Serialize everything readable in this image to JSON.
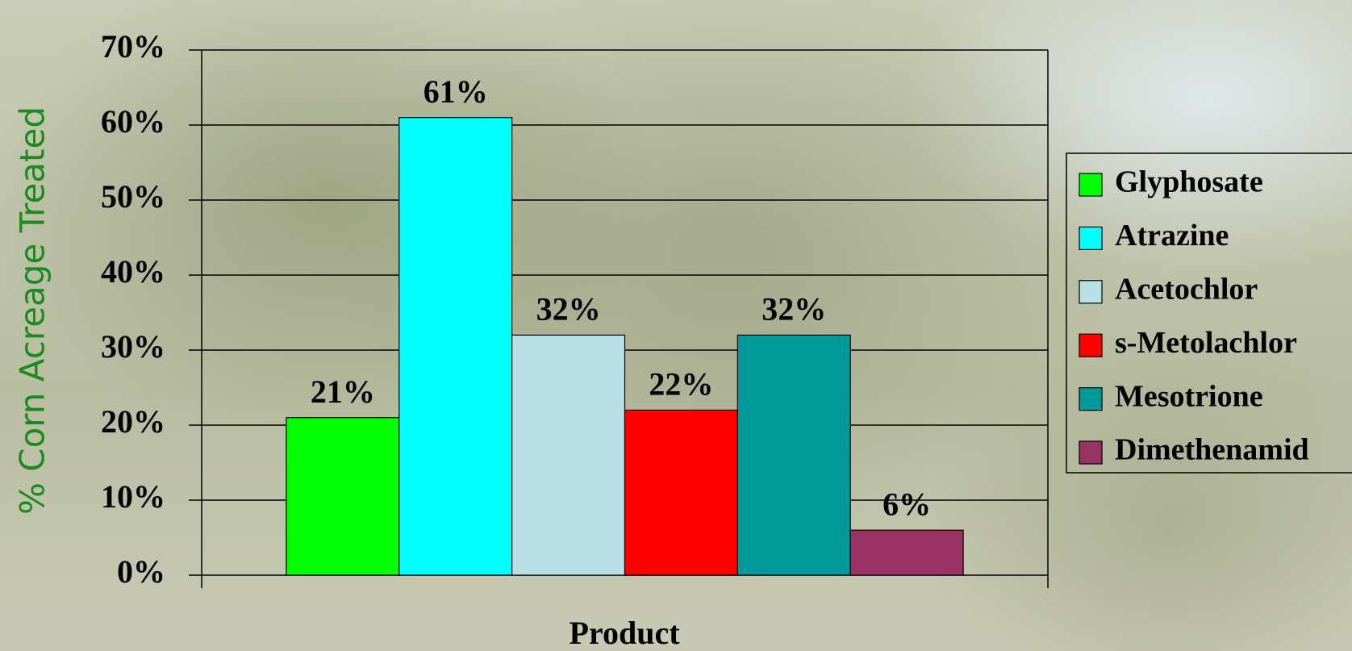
{
  "chart_data": {
    "type": "bar",
    "y_label": "% Corn Acreage Treated",
    "x_label": "Product",
    "categories": [
      null
    ],
    "series": [
      {
        "name": "Glyphosate",
        "color": "#00ff00",
        "values": [
          21
        ],
        "value_labels": [
          "21%"
        ]
      },
      {
        "name": "Atrazine",
        "color": "#00ffff",
        "values": [
          61
        ],
        "value_labels": [
          "61%"
        ]
      },
      {
        "name": "Acetochlor",
        "color": "#b9e0e4",
        "values": [
          32
        ],
        "value_labels": [
          "32%"
        ]
      },
      {
        "name": "s-Metolachlor",
        "color": "#ff0000",
        "values": [
          22
        ],
        "value_labels": [
          "22%"
        ]
      },
      {
        "name": "Mesotrione",
        "color": "#009999",
        "values": [
          32
        ],
        "value_labels": [
          "32%"
        ]
      },
      {
        "name": "Dimethenamid",
        "color": "#993366",
        "values": [
          6
        ],
        "value_labels": [
          "6%"
        ]
      }
    ],
    "ylim": [
      0,
      70
    ],
    "yticks": [
      {
        "value": 0,
        "label": "0%"
      },
      {
        "value": 10,
        "label": "10%"
      },
      {
        "value": 20,
        "label": "20%"
      },
      {
        "value": 30,
        "label": "30%"
      },
      {
        "value": 40,
        "label": "40%"
      },
      {
        "value": 50,
        "label": "50%"
      },
      {
        "value": 60,
        "label": "60%"
      },
      {
        "value": 70,
        "label": "70%"
      }
    ],
    "grid": true,
    "legend": "right"
  }
}
